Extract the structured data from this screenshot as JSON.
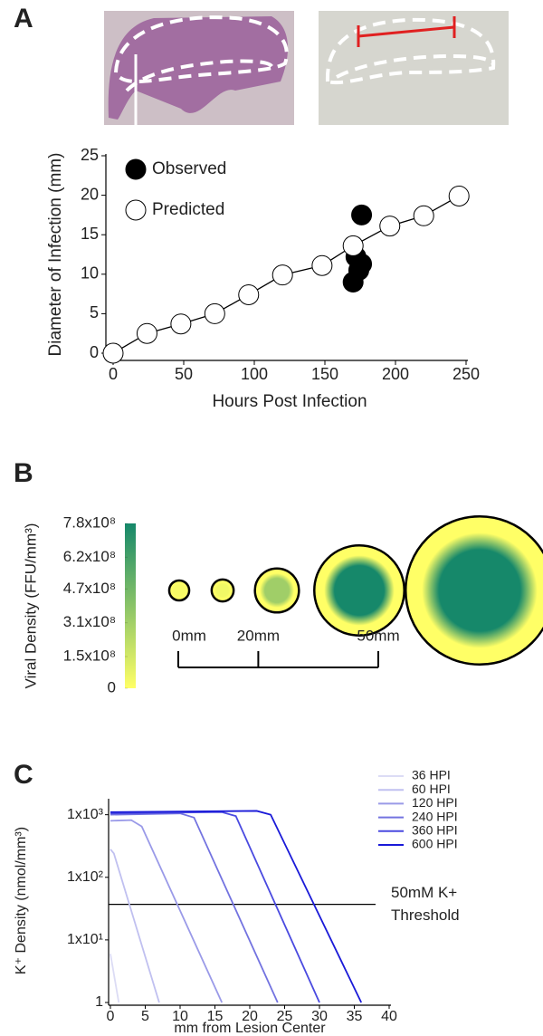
{
  "chart_data": [
    {
      "panel": "A",
      "type": "scatter",
      "xlabel": "Hours Post Infection",
      "ylabel": "Diameter of Infection (mm)",
      "xlim": [
        0,
        250
      ],
      "ylim": [
        0,
        25
      ],
      "xticks": [
        0,
        50,
        100,
        150,
        200,
        250
      ],
      "yticks": [
        0,
        5,
        10,
        15,
        20,
        25
      ],
      "legend": "upper left",
      "series": [
        {
          "name": "Observed",
          "color": "#000000",
          "x": [
            170,
            172,
            174,
            176,
            176
          ],
          "values": [
            9,
            12.2,
            10.5,
            11.3,
            17.5
          ]
        },
        {
          "name": "Predicted",
          "color": "#ffffff",
          "line": true,
          "x": [
            0,
            24,
            48,
            72,
            96,
            120,
            148,
            170,
            196,
            220,
            245
          ],
          "values": [
            0,
            2.5,
            3.7,
            5,
            7.4,
            9.9,
            11.1,
            13.6,
            16.1,
            17.4,
            19.9
          ]
        }
      ]
    },
    {
      "panel": "B",
      "type": "discs",
      "ylabel": "Viral Density (FFU/mm³)",
      "colorbar": {
        "colors": [
          "#ffff66",
          "#16886a"
        ],
        "clim": [
          0,
          780000000
        ],
        "ticks": [
          0,
          {
            "value": 150000000,
            "label": "1.5x10⁸"
          },
          {
            "value": 310000000,
            "label": "3.1x10⁸"
          },
          {
            "value": 470000000,
            "label": "4.7x10⁸"
          },
          {
            "value": 620000000,
            "label": "6.2x10⁸"
          },
          {
            "value": 780000000,
            "label": "7.8x10⁸"
          }
        ]
      },
      "scale": {
        "ticks": [
          {
            "value": 0,
            "label": "0mm"
          },
          {
            "value": 20,
            "label": "20mm"
          },
          {
            "value": 50,
            "label": "50mm"
          }
        ]
      },
      "values": [
        5,
        5.5,
        11,
        22.5,
        37
      ]
    },
    {
      "panel": "C",
      "type": "line",
      "log_y": true,
      "xlabel": "mm from Lesion Center",
      "ylabel": "K⁺ Density (nmol/mm³)",
      "xlim": [
        0,
        40
      ],
      "ylim": [
        1,
        1800
      ],
      "xticks": [
        0,
        5,
        10,
        15,
        20,
        25,
        30,
        35,
        40
      ],
      "yticks": [
        1,
        {
          "value": 10,
          "label": "1x10¹"
        },
        {
          "value": 100,
          "label": "1x10²"
        },
        {
          "value": 1000,
          "label": "1x10³"
        }
      ],
      "threshold": {
        "value": 37,
        "label": [
          "50mM K+",
          "Threshold"
        ]
      },
      "legend": "upper right",
      "series": [
        {
          "name": "36 HPI",
          "color": "#dcdcf5",
          "x": [
            0,
            1.2
          ],
          "values": [
            6,
            1
          ]
        },
        {
          "name": "60 HPI",
          "color": "#c0c0f0",
          "x": [
            0,
            0.5,
            7
          ],
          "values": [
            280,
            240,
            1
          ]
        },
        {
          "name": "120 HPI",
          "color": "#9a9ae8",
          "x": [
            0,
            3,
            4.5,
            16
          ],
          "values": [
            800,
            820,
            650,
            1
          ]
        },
        {
          "name": "240 HPI",
          "color": "#7373e0",
          "x": [
            0,
            10,
            12,
            24
          ],
          "values": [
            1000,
            1050,
            900,
            1
          ]
        },
        {
          "name": "360 HPI",
          "color": "#4a4ae0",
          "x": [
            0,
            16,
            18,
            30
          ],
          "values": [
            1050,
            1100,
            950,
            1
          ]
        },
        {
          "name": "600 HPI",
          "color": "#1a1ad8",
          "x": [
            0,
            21,
            23,
            36
          ],
          "values": [
            1100,
            1150,
            1000,
            1
          ]
        }
      ]
    }
  ]
}
